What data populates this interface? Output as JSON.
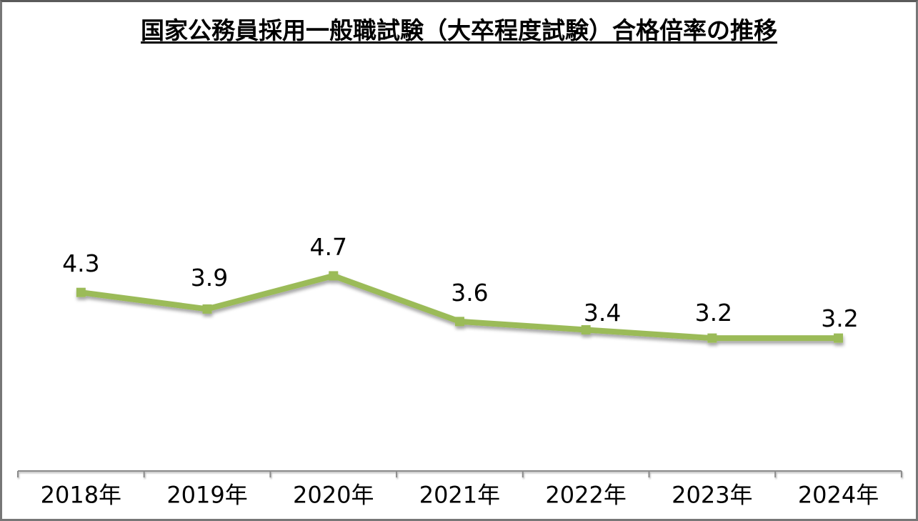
{
  "chart_data": {
    "type": "line",
    "title": "国家公務員採用一般職試験（大卒程度試験）合格倍率の推移",
    "categories": [
      "2018年",
      "2019年",
      "2020年",
      "2021年",
      "2022年",
      "2023年",
      "2024年"
    ],
    "series": [
      {
        "name": "合格倍率",
        "values": [
          4.3,
          3.9,
          4.7,
          3.6,
          3.4,
          3.2,
          3.2
        ]
      }
    ],
    "data_labels": [
      "4.3",
      "3.9",
      "4.7",
      "3.6",
      "3.4",
      "3.2",
      "3.2"
    ],
    "xlabel": "",
    "ylabel": "",
    "ylim": [
      0,
      5
    ],
    "grid": false,
    "legend": "none",
    "y_axis_visible": false,
    "marker_shape": "square",
    "colors": {
      "line": "#9bbb59",
      "marker": "#9bbb59",
      "axis": "#8a8a8a",
      "text": "#000000",
      "background": "#ffffff",
      "frame_border": "#777777"
    }
  }
}
